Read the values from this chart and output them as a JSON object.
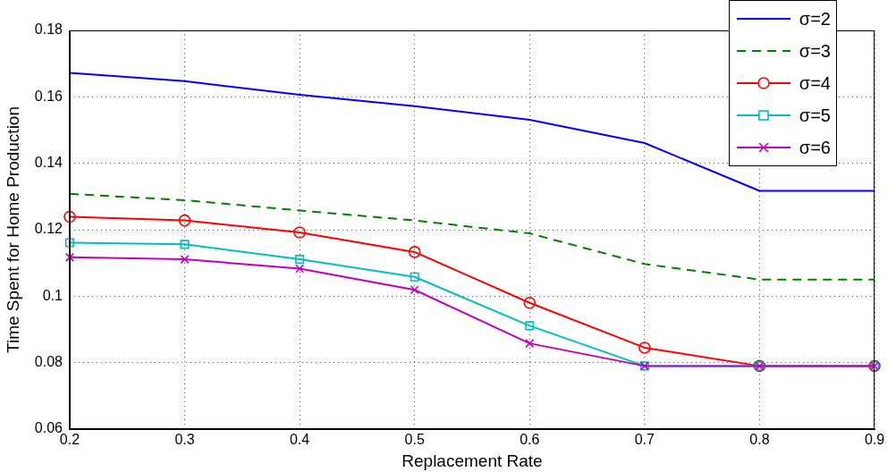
{
  "chart_data": {
    "type": "line",
    "xlabel": "Replacement Rate",
    "ylabel": "Time Spent for Home Production",
    "x": [
      0.2,
      0.3,
      0.4,
      0.5,
      0.6,
      0.7,
      0.8,
      0.9
    ],
    "series": [
      {
        "name": "σ=2",
        "color": "#0000ff",
        "marker": "none",
        "line_style": "solid",
        "values": [
          0.1672,
          0.1647,
          0.1606,
          0.1572,
          0.1531,
          0.1461,
          0.1317,
          0.1317
        ]
      },
      {
        "name": "σ=3",
        "color": "#008000",
        "marker": "none",
        "line_style": "dashed",
        "values": [
          0.1308,
          0.1289,
          0.1258,
          0.1228,
          0.1189,
          0.1097,
          0.105,
          0.105
        ]
      },
      {
        "name": "σ=4",
        "color": "#ff0000",
        "marker": "circle",
        "line_style": "solid",
        "values": [
          0.1239,
          0.1228,
          0.1192,
          0.1133,
          0.098,
          0.0845,
          0.079,
          0.079
        ]
      },
      {
        "name": "σ=5",
        "color": "#00bfbf",
        "marker": "square",
        "line_style": "solid",
        "values": [
          0.1161,
          0.1156,
          0.1111,
          0.1058,
          0.0911,
          0.079,
          0.079,
          0.079
        ]
      },
      {
        "name": "σ=6",
        "color": "#bf00bf",
        "marker": "cross",
        "line_style": "solid",
        "values": [
          0.1117,
          0.1111,
          0.1083,
          0.1019,
          0.0858,
          0.079,
          0.079,
          0.079
        ]
      }
    ],
    "xlim": [
      0.2,
      0.9
    ],
    "xticks": [
      0.2,
      0.3,
      0.4,
      0.5,
      0.6,
      0.7,
      0.8,
      0.9
    ],
    "ylim": [
      0.06,
      0.18
    ],
    "yticks": [
      0.06,
      0.08,
      0.1,
      0.12,
      0.14,
      0.16,
      0.18
    ],
    "grid": true,
    "legend": "top right"
  }
}
